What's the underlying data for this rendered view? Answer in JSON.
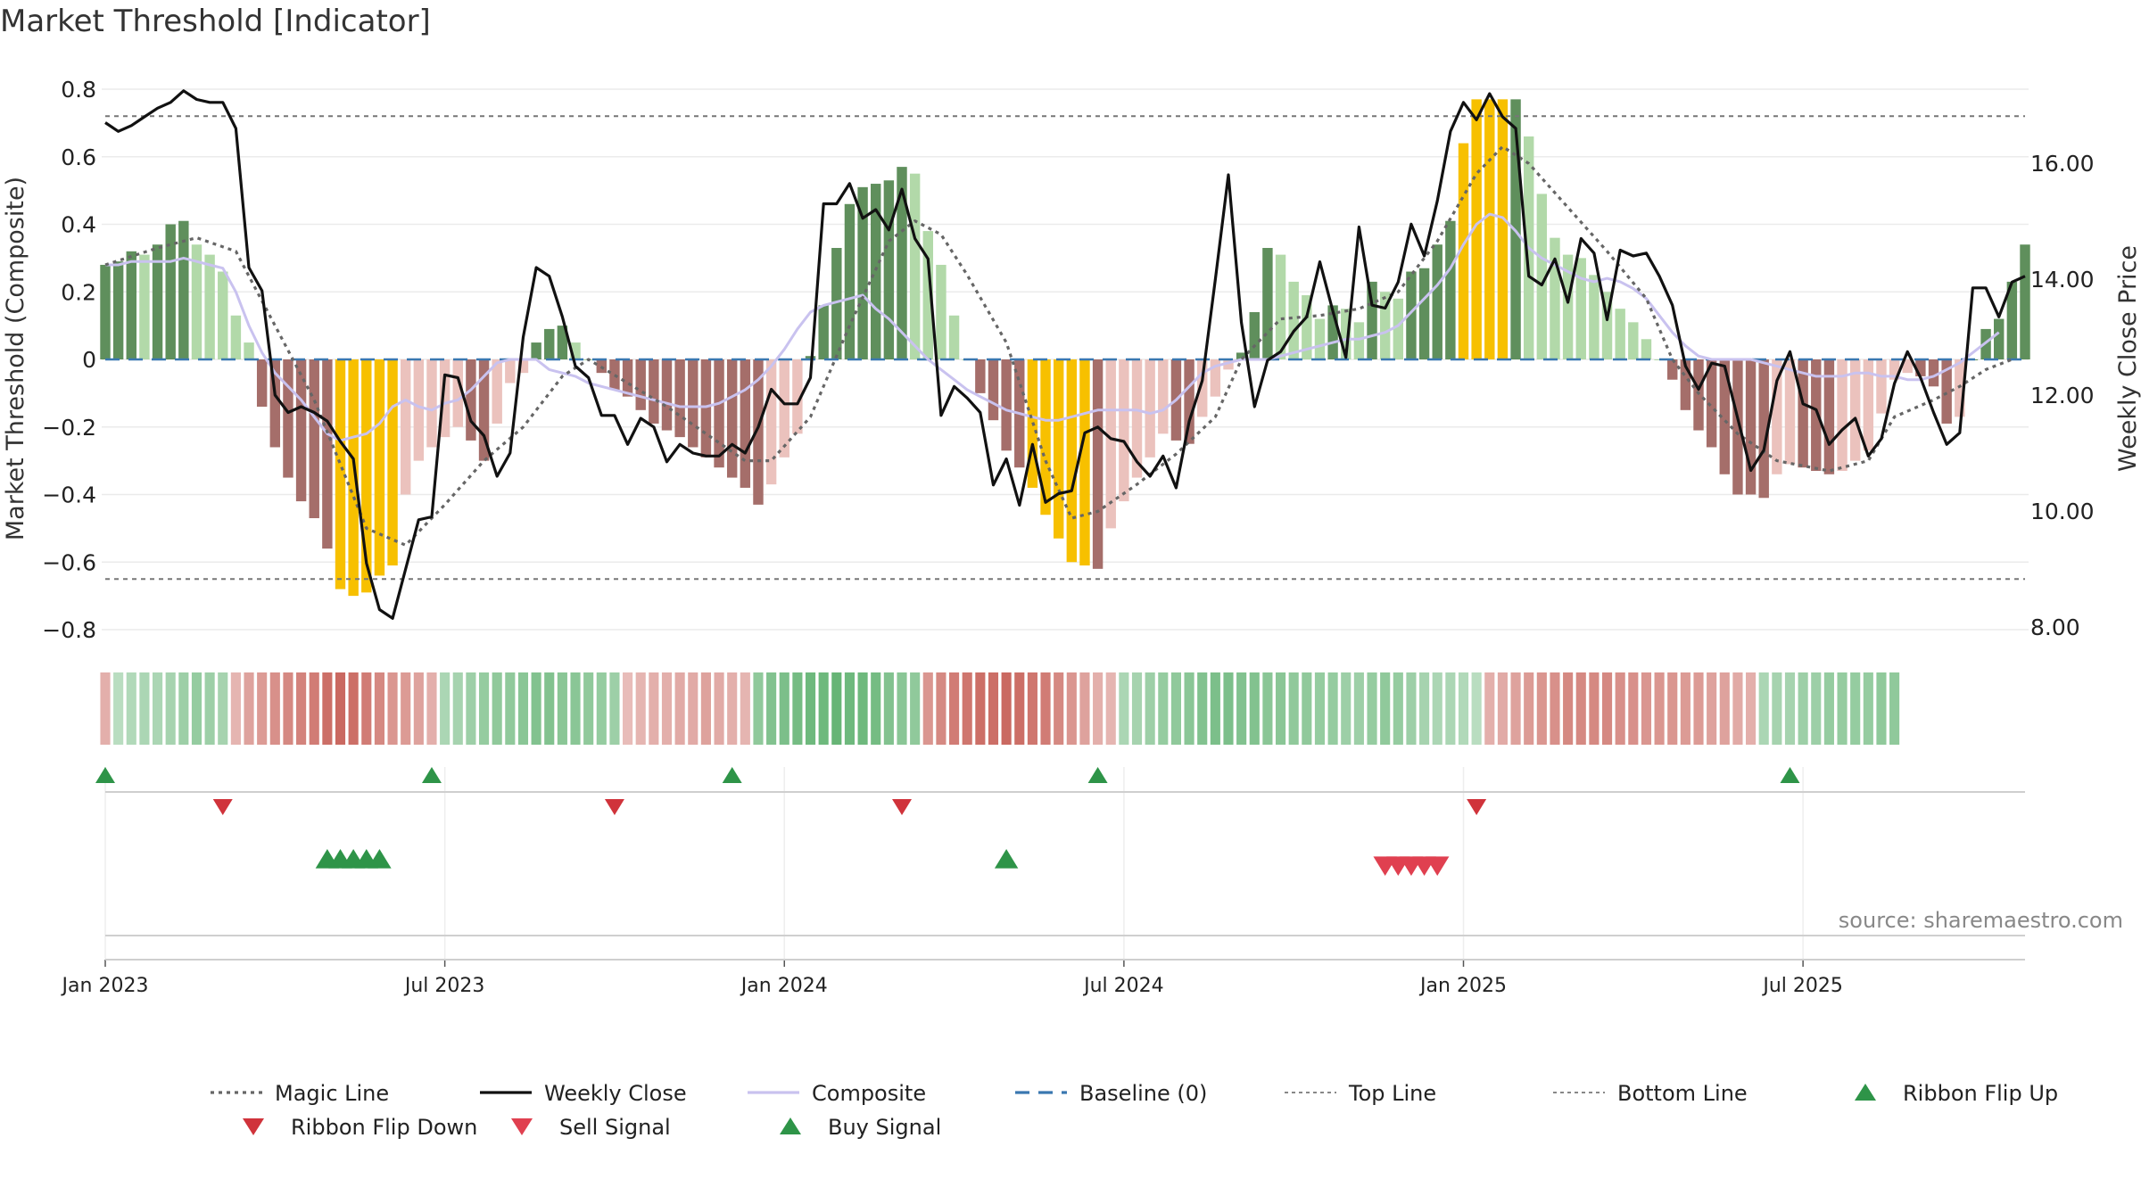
{
  "chart_data": {
    "type": "bar+line",
    "title": "Market Threshold [Indicator]",
    "ylabel_left": "Market Threshold (Composite)",
    "ylabel_right": "Weekly Close Price",
    "source": "source: sharemaestro.com",
    "ylim_left": [
      -0.85,
      0.8
    ],
    "ylim_right": [
      7.6,
      17.4
    ],
    "yticks_left": [
      {
        "v": 0.8,
        "label": "0.8"
      },
      {
        "v": 0.6,
        "label": "0.6"
      },
      {
        "v": 0.4,
        "label": "0.4"
      },
      {
        "v": 0.2,
        "label": "0.2"
      },
      {
        "v": 0,
        "label": "0"
      },
      {
        "v": -0.2,
        "label": "−0.2"
      },
      {
        "v": -0.4,
        "label": "−0.4"
      },
      {
        "v": -0.6,
        "label": "−0.6"
      },
      {
        "v": -0.8,
        "label": "−0.8"
      }
    ],
    "yticks_right": [
      {
        "v": 16,
        "label": "16.00"
      },
      {
        "v": 14,
        "label": "14.00"
      },
      {
        "v": 12,
        "label": "12.00"
      },
      {
        "v": 10,
        "label": "10.00"
      },
      {
        "v": 8,
        "label": "8.00"
      }
    ],
    "xticks": [
      {
        "week": 1,
        "label": "Jan 2023"
      },
      {
        "week": 27,
        "label": "Jul 2023"
      },
      {
        "week": 53,
        "label": "Jan 2024"
      },
      {
        "week": 79,
        "label": "Jul 2024"
      },
      {
        "week": 105,
        "label": "Jan 2025"
      },
      {
        "week": 131,
        "label": "Jul 2025"
      }
    ],
    "top_line": 0.72,
    "bottom_line": -0.65,
    "baseline": 0,
    "composite_bars": [
      0.28,
      0.29,
      0.32,
      0.31,
      0.34,
      0.4,
      0.41,
      0.34,
      0.31,
      0.26,
      0.13,
      0.05,
      -0.14,
      -0.26,
      -0.35,
      -0.42,
      -0.47,
      -0.56,
      -0.68,
      -0.7,
      -0.69,
      -0.64,
      -0.61,
      -0.4,
      -0.3,
      -0.26,
      -0.23,
      -0.2,
      -0.24,
      -0.3,
      -0.19,
      -0.07,
      -0.04,
      0.05,
      0.09,
      0.1,
      0.05,
      0.0,
      -0.04,
      -0.09,
      -0.11,
      -0.15,
      -0.19,
      -0.21,
      -0.23,
      -0.26,
      -0.29,
      -0.32,
      -0.35,
      -0.38,
      -0.43,
      -0.37,
      -0.29,
      -0.22,
      0.01,
      0.16,
      0.33,
      0.46,
      0.51,
      0.52,
      0.53,
      0.57,
      0.55,
      0.38,
      0.28,
      0.13,
      0.0,
      -0.1,
      -0.18,
      -0.27,
      -0.32,
      -0.38,
      -0.46,
      -0.53,
      -0.6,
      -0.61,
      -0.62,
      -0.5,
      -0.42,
      -0.35,
      -0.29,
      -0.22,
      -0.24,
      -0.25,
      -0.17,
      -0.11,
      -0.03,
      0.02,
      0.14,
      0.33,
      0.31,
      0.23,
      0.19,
      0.12,
      0.16,
      0.15,
      0.11,
      0.23,
      0.2,
      0.18,
      0.26,
      0.27,
      0.34,
      0.41,
      0.64,
      0.77,
      0.77,
      0.77,
      0.77,
      0.66,
      0.49,
      0.36,
      0.31,
      0.3,
      0.25,
      0.2,
      0.15,
      0.11,
      0.06,
      0.0,
      -0.06,
      -0.15,
      -0.21,
      -0.26,
      -0.34,
      -0.4,
      -0.4,
      -0.41,
      -0.34,
      -0.31,
      -0.32,
      -0.33,
      -0.34,
      -0.33,
      -0.3,
      -0.27,
      -0.16,
      -0.06,
      -0.04,
      -0.05,
      -0.08,
      -0.19,
      -0.17,
      0.0,
      0.09,
      0.12,
      0.23,
      0.34
    ],
    "highlight_weeks": [
      19,
      20,
      21,
      22,
      23,
      72,
      73,
      74,
      75,
      76,
      105,
      106,
      107,
      108
    ],
    "weekly_close": [
      16.7,
      16.55,
      16.65,
      16.8,
      16.95,
      17.05,
      17.25,
      17.1,
      17.05,
      17.05,
      16.6,
      14.2,
      13.8,
      12.0,
      11.7,
      11.8,
      11.7,
      11.55,
      11.2,
      10.9,
      9.1,
      8.3,
      8.15,
      9.0,
      9.85,
      9.9,
      12.35,
      12.3,
      11.55,
      11.3,
      10.6,
      11.0,
      13.0,
      14.2,
      14.05,
      13.35,
      12.5,
      12.3,
      11.65,
      11.65,
      11.15,
      11.6,
      11.45,
      10.85,
      11.15,
      11.0,
      10.95,
      10.95,
      11.15,
      11.0,
      11.45,
      12.1,
      11.85,
      11.85,
      12.3,
      15.3,
      15.3,
      15.65,
      15.05,
      15.2,
      14.85,
      15.55,
      14.7,
      14.35,
      11.65,
      12.15,
      11.95,
      11.7,
      10.45,
      10.9,
      10.1,
      11.15,
      10.15,
      10.3,
      10.35,
      11.35,
      11.45,
      11.25,
      11.2,
      10.85,
      10.6,
      10.95,
      10.4,
      11.55,
      12.25,
      14.0,
      15.8,
      13.25,
      11.8,
      12.6,
      12.75,
      13.1,
      13.35,
      14.3,
      13.45,
      12.65,
      14.9,
      13.55,
      13.5,
      13.95,
      14.95,
      14.4,
      15.35,
      16.55,
      17.05,
      16.75,
      17.2,
      16.8,
      16.6,
      14.05,
      13.9,
      14.35,
      13.6,
      14.7,
      14.45,
      13.3,
      14.5,
      14.4,
      14.45,
      14.05,
      13.55,
      12.5,
      12.1,
      12.55,
      12.5,
      11.6,
      10.7,
      11.05,
      12.25,
      12.75,
      11.85,
      11.75,
      11.15,
      11.4,
      11.6,
      10.95,
      11.25,
      12.2,
      12.75,
      12.3,
      11.7,
      11.15,
      11.35,
      13.85,
      13.85,
      13.35,
      13.95,
      14.05
    ],
    "composite_line": [
      0.28,
      0.28,
      0.29,
      0.29,
      0.29,
      0.29,
      0.3,
      0.29,
      0.28,
      0.27,
      0.2,
      0.1,
      0.02,
      -0.04,
      -0.08,
      -0.12,
      -0.17,
      -0.22,
      -0.24,
      -0.23,
      -0.22,
      -0.19,
      -0.14,
      -0.12,
      -0.14,
      -0.15,
      -0.13,
      -0.12,
      -0.09,
      -0.05,
      -0.01,
      0.0,
      0.0,
      0.0,
      -0.03,
      -0.04,
      -0.05,
      -0.07,
      -0.08,
      -0.09,
      -0.1,
      -0.11,
      -0.12,
      -0.13,
      -0.14,
      -0.14,
      -0.14,
      -0.13,
      -0.11,
      -0.09,
      -0.06,
      -0.02,
      0.03,
      0.09,
      0.14,
      0.16,
      0.17,
      0.18,
      0.19,
      0.15,
      0.12,
      0.08,
      0.04,
      0.0,
      -0.03,
      -0.06,
      -0.09,
      -0.11,
      -0.13,
      -0.15,
      -0.16,
      -0.17,
      -0.18,
      -0.18,
      -0.17,
      -0.16,
      -0.15,
      -0.15,
      -0.15,
      -0.15,
      -0.16,
      -0.15,
      -0.12,
      -0.08,
      -0.04,
      -0.02,
      -0.01,
      0.0,
      0.0,
      0.0,
      0.01,
      0.02,
      0.03,
      0.04,
      0.05,
      0.06,
      0.06,
      0.07,
      0.08,
      0.1,
      0.14,
      0.18,
      0.22,
      0.27,
      0.34,
      0.4,
      0.43,
      0.42,
      0.38,
      0.33,
      0.3,
      0.28,
      0.26,
      0.24,
      0.23,
      0.24,
      0.23,
      0.21,
      0.18,
      0.13,
      0.08,
      0.04,
      0.01,
      0.0,
      0.0,
      0.0,
      0.0,
      -0.01,
      -0.02,
      -0.03,
      -0.04,
      -0.05,
      -0.05,
      -0.05,
      -0.04,
      -0.04,
      -0.05,
      -0.05,
      -0.06,
      -0.06,
      -0.05,
      -0.03,
      -0.01,
      0.02,
      0.05,
      0.08
    ],
    "magic_line_points": [
      [
        1,
        0.28
      ],
      [
        5,
        0.33
      ],
      [
        8,
        0.36
      ],
      [
        11,
        0.32
      ],
      [
        14,
        0.1
      ],
      [
        17,
        -0.12
      ],
      [
        21,
        -0.5
      ],
      [
        24,
        -0.55
      ],
      [
        27,
        -0.43
      ],
      [
        30,
        -0.3
      ],
      [
        33,
        -0.2
      ],
      [
        36,
        -0.05
      ],
      [
        38,
        0.0
      ],
      [
        41,
        -0.07
      ],
      [
        44,
        -0.14
      ],
      [
        47,
        -0.22
      ],
      [
        50,
        -0.3
      ],
      [
        52,
        -0.3
      ],
      [
        55,
        -0.17
      ],
      [
        58,
        0.1
      ],
      [
        61,
        0.35
      ],
      [
        63,
        0.41
      ],
      [
        65,
        0.37
      ],
      [
        67,
        0.25
      ],
      [
        70,
        0.05
      ],
      [
        73,
        -0.3
      ],
      [
        75,
        -0.47
      ],
      [
        77,
        -0.45
      ],
      [
        80,
        -0.37
      ],
      [
        83,
        -0.28
      ],
      [
        86,
        -0.17
      ],
      [
        88,
        0.0
      ],
      [
        91,
        0.12
      ],
      [
        94,
        0.13
      ],
      [
        97,
        0.15
      ],
      [
        100,
        0.2
      ],
      [
        103,
        0.35
      ],
      [
        106,
        0.55
      ],
      [
        108,
        0.63
      ],
      [
        110,
        0.58
      ],
      [
        113,
        0.45
      ],
      [
        116,
        0.32
      ],
      [
        119,
        0.18
      ],
      [
        121,
        0.0
      ],
      [
        123,
        -0.1
      ],
      [
        126,
        -0.22
      ],
      [
        129,
        -0.3
      ],
      [
        133,
        -0.33
      ],
      [
        136,
        -0.3
      ],
      [
        138,
        -0.17
      ],
      [
        141,
        -0.12
      ],
      [
        143,
        -0.08
      ],
      [
        145,
        -0.03
      ],
      [
        147,
        0.0
      ]
    ],
    "ribbon_values": [
      -0.3,
      0.2,
      0.25,
      0.3,
      0.3,
      0.35,
      0.4,
      0.45,
      0.4,
      0.35,
      -0.25,
      -0.4,
      -0.45,
      -0.55,
      -0.6,
      -0.65,
      -0.7,
      -0.8,
      -0.85,
      -0.8,
      -0.7,
      -0.6,
      -0.5,
      -0.45,
      -0.4,
      -0.3,
      0.3,
      0.35,
      0.4,
      0.45,
      0.5,
      0.5,
      0.55,
      0.6,
      0.6,
      0.55,
      0.55,
      0.5,
      0.45,
      0.4,
      -0.2,
      -0.25,
      -0.3,
      -0.3,
      -0.35,
      -0.35,
      -0.4,
      -0.35,
      -0.3,
      -0.25,
      0.5,
      0.6,
      0.65,
      0.7,
      0.75,
      0.75,
      0.8,
      0.75,
      0.75,
      0.7,
      0.6,
      0.55,
      0.5,
      -0.5,
      -0.6,
      -0.7,
      -0.75,
      -0.8,
      -0.8,
      -0.85,
      -0.8,
      -0.75,
      -0.7,
      -0.6,
      -0.5,
      -0.4,
      -0.3,
      -0.25,
      0.3,
      0.35,
      0.4,
      0.45,
      0.5,
      0.55,
      0.6,
      0.65,
      0.65,
      0.6,
      0.6,
      0.55,
      0.55,
      0.5,
      0.5,
      0.45,
      0.45,
      0.4,
      0.4,
      0.45,
      0.5,
      0.45,
      0.4,
      0.35,
      0.3,
      0.3,
      0.25,
      0.2,
      -0.3,
      -0.35,
      -0.4,
      -0.45,
      -0.5,
      -0.55,
      -0.6,
      -0.6,
      -0.6,
      -0.6,
      -0.55,
      -0.55,
      -0.5,
      -0.5,
      -0.5,
      -0.45,
      -0.45,
      -0.4,
      -0.4,
      -0.35,
      -0.3,
      0.3,
      0.35,
      0.35,
      0.4,
      0.4,
      0.45,
      0.45,
      0.45,
      0.45,
      0.5,
      0.5
    ],
    "ribbon_flip_up_weeks": [
      1,
      26,
      49,
      77,
      130
    ],
    "ribbon_flip_down_weeks": [
      10,
      40,
      62,
      106
    ],
    "buy_signal_weeks": [
      18,
      19,
      20,
      21,
      22,
      70
    ],
    "sell_signal_weeks": [
      99,
      100,
      101,
      102,
      103
    ],
    "legend": [
      {
        "label": "Magic Line",
        "kind": "dotted",
        "color": "#666666"
      },
      {
        "label": "Weekly Close",
        "kind": "solid",
        "color": "#111111"
      },
      {
        "label": "Composite",
        "kind": "solid",
        "color": "#c9c2ef"
      },
      {
        "label": "Baseline (0)",
        "kind": "dashed",
        "color": "#3a78b0"
      },
      {
        "label": "Top Line",
        "kind": "dotted-fine",
        "color": "#888888"
      },
      {
        "label": "Bottom Line",
        "kind": "dotted-fine",
        "color": "#888888"
      },
      {
        "label": "Ribbon Flip Up",
        "kind": "tri-up",
        "color": "#2e9448"
      },
      {
        "label": "Ribbon Flip Down",
        "kind": "tri-down",
        "color": "#d0333b"
      },
      {
        "label": "Sell Signal",
        "kind": "tri-down",
        "color": "#e04050"
      },
      {
        "label": "Buy Signal",
        "kind": "tri-up",
        "color": "#2e9448"
      }
    ],
    "colors": {
      "pos_strong": "#5f8f5c",
      "pos_light": "#b2d9a9",
      "neg_strong": "#a56e6a",
      "neg_light": "#ebc2bd",
      "highlight": "#f7c000",
      "close_line": "#111111",
      "composite_line": "#c9c2ef",
      "magic_line": "#666666",
      "baseline": "#3a78b0",
      "threshold": "#777777"
    }
  }
}
